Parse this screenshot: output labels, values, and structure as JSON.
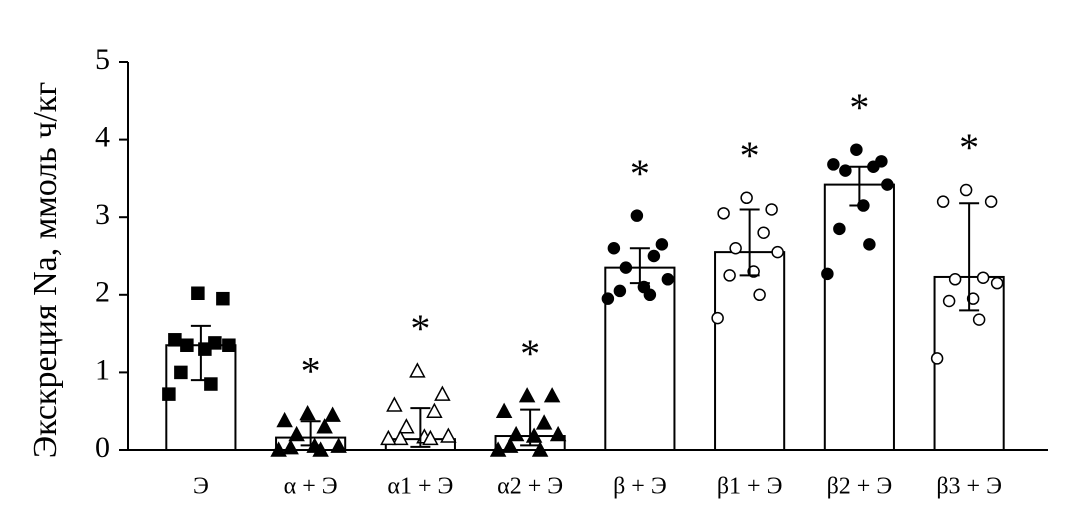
{
  "chart_data": {
    "type": "bar",
    "y_label": "Экскреция Na, ммоль ч/кг",
    "categories": [
      "Э",
      "α + Э",
      "α1 + Э",
      "α2 + Э",
      "β + Э",
      "β1 + Э",
      "β2 + Э",
      "β3 + Э"
    ],
    "values": [
      1.35,
      0.16,
      0.14,
      0.18,
      2.35,
      2.55,
      3.42,
      2.23
    ],
    "error_minus": [
      0.45,
      0.1,
      0.1,
      0.12,
      0.2,
      0.3,
      0.27,
      0.43
    ],
    "error_plus": [
      0.25,
      0.21,
      0.4,
      0.34,
      0.25,
      0.55,
      0.23,
      0.95
    ],
    "points": [
      [
        2.02,
        1.95,
        1.42,
        1.38,
        1.35,
        1.35,
        1.3,
        1.0,
        0.85,
        0.72
      ],
      [
        0.47,
        0.45,
        0.38,
        0.3,
        0.2,
        0.05,
        0.05,
        0.03,
        0.0,
        0.0
      ],
      [
        1.02,
        0.72,
        0.58,
        0.5,
        0.3,
        0.18,
        0.17,
        0.15,
        0.15,
        0.15
      ],
      [
        0.7,
        0.7,
        0.5,
        0.35,
        0.2,
        0.2,
        0.18,
        0.05,
        0.0,
        0.0
      ],
      [
        3.02,
        2.65,
        2.6,
        2.5,
        2.35,
        2.2,
        2.1,
        2.05,
        2.0,
        1.95
      ],
      [
        3.25,
        3.1,
        3.05,
        2.8,
        2.6,
        2.55,
        2.3,
        2.25,
        2.0,
        1.7
      ],
      [
        3.87,
        3.72,
        3.68,
        3.65,
        3.6,
        3.42,
        3.15,
        2.85,
        2.65,
        2.27
      ],
      [
        3.35,
        3.2,
        3.2,
        2.22,
        2.2,
        2.15,
        1.95,
        1.92,
        1.68,
        1.18
      ]
    ],
    "markers": [
      "square",
      "triangle",
      "triangle",
      "triangle",
      "circle",
      "circle",
      "circle",
      "circle"
    ],
    "marker_filled": [
      true,
      true,
      false,
      true,
      true,
      false,
      true,
      false
    ],
    "significance": [
      null,
      "*",
      "*",
      "*",
      "*",
      "*",
      "*",
      "*"
    ],
    "color": "#ffffff",
    "ylim": [
      0,
      5
    ],
    "yticks": [
      0,
      1,
      2,
      3,
      4,
      5
    ],
    "grid": false
  }
}
